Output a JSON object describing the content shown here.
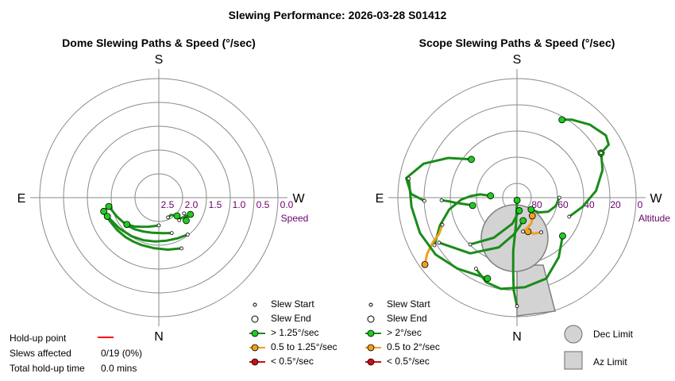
{
  "title": "Slewing Performance: 2026-03-28 S01412",
  "colors": {
    "fast": "#1fcc1f",
    "fast_line": "#1a8c1a",
    "medium": "#f0a020",
    "slow": "#cc1111",
    "limit_fill": "#d3d3d3",
    "limit_stroke": "#808080",
    "holdup": "#ff0000"
  },
  "chart_data": [
    {
      "type": "polar",
      "title": "Dome Slewing Paths & Speed (°/sec)",
      "cardinals": {
        "top": "S",
        "bottom": "N",
        "left": "E",
        "right": "W"
      },
      "radial_axis": {
        "name": "Speed",
        "ticks": [
          "2.5",
          "2.0",
          "1.5",
          "1.0",
          "0.5",
          "0.0"
        ],
        "range": [
          3.0,
          0.0
        ]
      },
      "paths": [
        {
          "azimuth": [
            204,
            190,
            174,
            160,
            150,
            140,
            128,
            115,
            104
          ],
          "speed": [
            1.6,
            1.67,
            1.72,
            1.73,
            1.72,
            1.7,
            1.67,
            1.63,
            1.57
          ],
          "class": "fast"
        },
        {
          "azimuth": [
            200,
            187,
            170,
            155,
            143,
            130,
            114,
            100
          ],
          "speed": [
            2.05,
            2.1,
            2.1,
            2.06,
            2.0,
            1.93,
            1.84,
            1.72
          ],
          "class": "fast"
        },
        {
          "azimuth": [
            218,
            205,
            190,
            175,
            160,
            145,
            128,
            110
          ],
          "speed": [
            1.82,
            1.87,
            1.9,
            1.89,
            1.86,
            1.81,
            1.74,
            1.62
          ],
          "class": "fast"
        },
        {
          "azimuth": [
            222,
            225,
            230,
            236,
            240,
            242
          ],
          "speed": [
            2.23,
            2.25,
            2.22,
            2.16,
            2.12,
            2.1
          ],
          "class": "fast"
        },
        {
          "azimuth": [
            238,
            236,
            233,
            230
          ],
          "speed": [
            2.25,
            2.2,
            2.15,
            2.1
          ],
          "class": "fast"
        },
        {
          "azimuth": [
            205,
            215,
            225
          ],
          "speed": [
            2.45,
            2.47,
            2.35
          ],
          "class": "fast"
        },
        {
          "azimuth": [
            180,
            170,
            160,
            150,
            140,
            130
          ],
          "speed": [
            2.3,
            2.27,
            2.22,
            2.15,
            2.05,
            1.95
          ],
          "class": "fast"
        }
      ],
      "holdup": {
        "label": "Hold-up point",
        "slews_affected_label": "Slews affected",
        "slews_affected": "0/19 (0%)",
        "total_label": "Total hold-up time",
        "total": "0.0 mins"
      },
      "legend": [
        {
          "label": "Slew Start",
          "kind": "start"
        },
        {
          "label": "Slew End",
          "kind": "end"
        },
        {
          "label": "> 1.25°/sec",
          "kind": "fast"
        },
        {
          "label": "0.5 to 1.25°/sec",
          "kind": "medium"
        },
        {
          "label": "< 0.5°/sec",
          "kind": "slow"
        }
      ]
    },
    {
      "type": "polar",
      "title": "Scope Slewing Paths & Speed (°/sec)",
      "cardinals": {
        "top": "S",
        "bottom": "N",
        "left": "E",
        "right": "W"
      },
      "radial_axis": {
        "name": "Altitude",
        "ticks": [
          "80",
          "60",
          "40",
          "20",
          "0"
        ],
        "range": [
          90,
          0
        ]
      },
      "limits": {
        "dec_label": "Dec Limit",
        "az_label": "Az Limit"
      },
      "paths": [
        {
          "azimuth": [
            180,
            178,
            177,
            176,
            178,
            182
          ],
          "altitude": [
            8,
            20,
            35,
            50,
            70,
            88
          ],
          "class": "fast"
        },
        {
          "azimuth": [
            150,
            160,
            170,
            185,
            200,
            215,
            230
          ],
          "altitude": [
            28,
            22,
            20,
            22,
            25,
            35,
            45
          ],
          "class": "fast"
        },
        {
          "azimuth": [
            120,
            110,
            100,
            92,
            88,
            85,
            86
          ],
          "altitude": [
            18,
            28,
            38,
            48,
            55,
            62,
            70
          ],
          "class": "fast"
        },
        {
          "azimuth": [
            92,
            88,
            80,
            70,
            60,
            50
          ],
          "altitude": [
            20,
            10,
            5,
            15,
            30,
            45
          ],
          "class": "fast"
        },
        {
          "azimuth": [
            120,
            140,
            160,
            175,
            185,
            195
          ],
          "altitude": [
            22,
            35,
            50,
            62,
            68,
            72
          ],
          "class": "fast"
        },
        {
          "azimuth": [
            250,
            262,
            275,
            288,
            298
          ],
          "altitude": [
            48,
            40,
            30,
            22,
            18
          ],
          "class": "fast"
        },
        {
          "azimuth": [
            298,
            300,
            305,
            315,
            325,
            330
          ],
          "altitude": [
            18,
            10,
            8,
            12,
            18,
            22
          ],
          "class": "fast"
        },
        {
          "azimuth": [
            110,
            115,
            118,
            122,
            126
          ],
          "altitude": [
            30,
            25,
            18,
            10,
            4
          ],
          "class": "medium"
        },
        {
          "azimuth": [
            215,
            205,
            200,
            198
          ],
          "altitude": [
            58,
            60,
            62,
            63
          ],
          "class": "medium"
        },
        {
          "azimuth": [
            190,
            200,
            210,
            220
          ],
          "altitude": [
            64,
            66,
            68,
            72
          ],
          "class": "medium"
        },
        {
          "azimuth": [
            80,
            95,
            110,
            125,
            140,
            160
          ],
          "altitude": [
            7,
            10,
            12,
            15,
            20,
            25
          ],
          "class": "fast"
        },
        {
          "azimuth": [
            270,
            258,
            246,
            236,
            230
          ],
          "altitude": [
            58,
            60,
            64,
            70,
            76
          ],
          "class": "fast"
        },
        {
          "azimuth": [
            135,
            150,
            170,
            190
          ],
          "altitude": [
            40,
            55,
            70,
            80
          ],
          "class": "fast"
        },
        {
          "azimuth": [
            92,
            93,
            95,
            97,
            100
          ],
          "altitude": [
            33,
            38,
            44,
            50,
            56
          ],
          "class": "fast"
        }
      ],
      "legend": [
        {
          "label": "Slew Start",
          "kind": "start"
        },
        {
          "label": "Slew End",
          "kind": "end"
        },
        {
          "label": "> 2°/sec",
          "kind": "fast"
        },
        {
          "label": "0.5 to 2°/sec",
          "kind": "medium"
        },
        {
          "label": "< 0.5°/sec",
          "kind": "slow"
        }
      ]
    }
  ]
}
